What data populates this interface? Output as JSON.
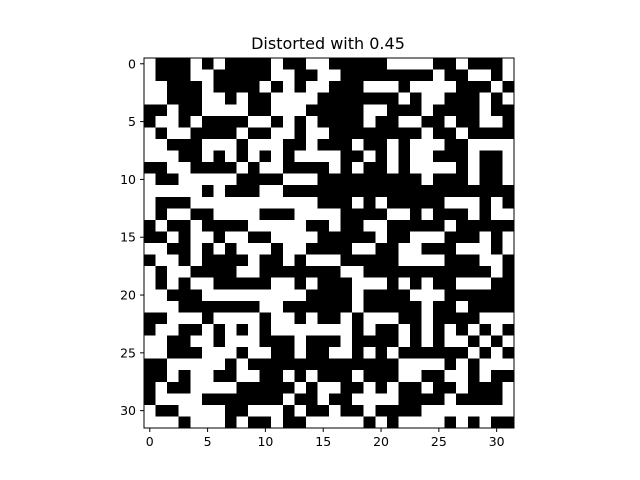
{
  "chart_data": {
    "type": "heatmap",
    "title": "Distorted with 0.45",
    "xlabel": "",
    "ylabel": "",
    "rows": 32,
    "cols": 32,
    "colormap": "binary",
    "colors": {
      "on": "#000000",
      "off": "#ffffff"
    },
    "x_ticks": [
      0,
      5,
      10,
      15,
      20,
      25,
      30
    ],
    "y_ticks": [
      0,
      5,
      10,
      15,
      20,
      25,
      30
    ],
    "xlim": [
      -0.5,
      31.5
    ],
    "ylim": [
      31.5,
      -0.5
    ],
    "grid": false,
    "matrix": [
      "01110101111011001111100001101110",
      "01110011111001100111111110110010",
      "00111011110101001110001000011101",
      "00111001011000011111110100111010",
      "11011000011000111110011101111011",
      "10010111100101011110110011011001",
      "01001111011001001111111101101111",
      "00111000100011011101101000110000",
      "00011010101010000110101001110110",
      "11001111010011110101101000010110",
      "01100000111100011111111101110110",
      "00000101110011111111111111111111",
      "01110000000000011101011111000101",
      "01001100001110000111100101110100",
      "10110111100000110110011111011111",
      "11010010011000011111011000111010",
      "00110101000100111100110011100010",
      "10010111101101000111110000111001",
      "01001111001111111001111111111101",
      "01010011111001011100010101100011",
      "00111000000000111101111000111111",
      "00011111110011111101111101101111",
      "11000100001001011010001101111000",
      "10011010101000000010110101010101",
      "00110010001110111011110101001010",
      "00111000100110110010101111110101",
      "11000001011111111111110000101000",
      "11010011001101011101110011001011",
      "10110000111110100110101101101110",
      "10000111111101101100001111011110",
      "01100001100010110110111100000000",
      "00010001011011000001010000101011"
    ]
  }
}
